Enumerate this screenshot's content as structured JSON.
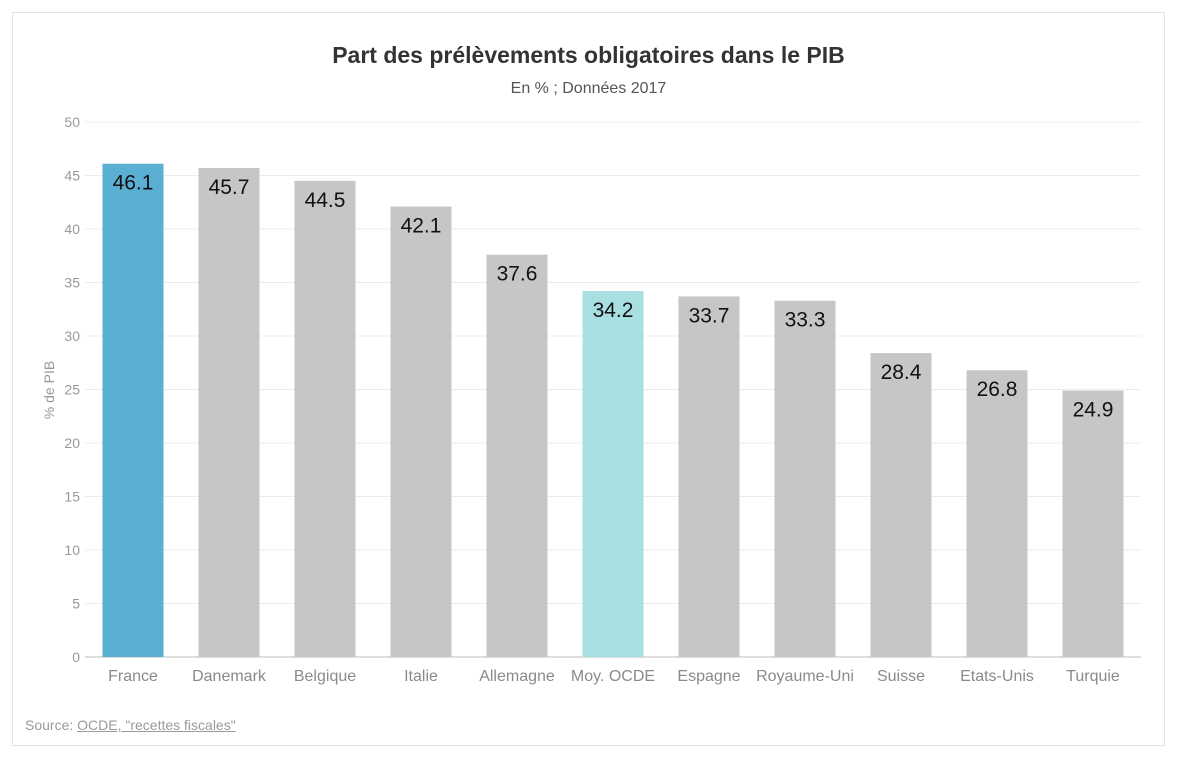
{
  "chart_data": {
    "type": "bar",
    "title": "Part des prélèvements obligatoires dans le PIB",
    "subtitle": "En % ; Données 2017",
    "ylabel": "% de PIB",
    "xlabel": "",
    "ylim": [
      0,
      50
    ],
    "yticks": [
      0,
      5,
      10,
      15,
      20,
      25,
      30,
      35,
      40,
      45,
      50
    ],
    "grid": true,
    "categories": [
      "France",
      "Danemark",
      "Belgique",
      "Italie",
      "Allemagne",
      "Moy. OCDE",
      "Espagne",
      "Royaume-Uni",
      "Suisse",
      "Etats-Unis",
      "Turquie"
    ],
    "values": [
      46.1,
      45.7,
      44.5,
      42.1,
      37.6,
      34.2,
      33.7,
      33.3,
      28.4,
      26.8,
      24.9
    ],
    "colors": [
      "#5aafd3",
      "#c6c6c6",
      "#c6c6c6",
      "#c6c6c6",
      "#c6c6c6",
      "#a8dfe0",
      "#c6c6c6",
      "#c6c6c6",
      "#c6c6c6",
      "#c6c6c6",
      "#c6c6c6"
    ]
  },
  "source": {
    "prefix": "Source: ",
    "link_text": "OCDE, \"recettes fiscales\""
  }
}
